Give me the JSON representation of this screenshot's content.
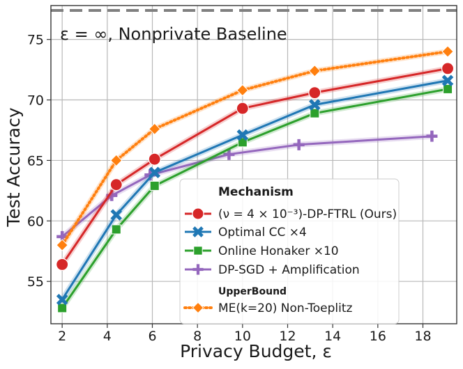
{
  "chart_data": {
    "type": "line",
    "xlabel": "Privacy Budget, ε",
    "ylabel": "Test Accuracy",
    "xlim": [
      1.5,
      19.5
    ],
    "ylim": [
      51.5,
      77.8
    ],
    "xticks": [
      2,
      4,
      6,
      8,
      10,
      12,
      14,
      16,
      18
    ],
    "yticks": [
      55,
      60,
      65,
      70,
      75
    ],
    "grid": true,
    "legend_position": "lower-right",
    "baseline": {
      "value": 77.4,
      "label": "ε = ∞, Nonprivate Baseline",
      "color": "#808080"
    },
    "legend": {
      "title": "Mechanism",
      "subtitle": "UpperBound"
    },
    "series": [
      {
        "name": "(ν = 4 × 10⁻³)-DP-FTRL (Ours)",
        "color": "#d62728",
        "marker": "circle",
        "style": "solid",
        "x": [
          2,
          4.4,
          6.1,
          10,
          13.2,
          19.1
        ],
        "y": [
          56.4,
          63.0,
          65.1,
          69.3,
          70.6,
          72.6
        ]
      },
      {
        "name": "Optimal CC ×4",
        "color": "#1f77b4",
        "marker": "x",
        "style": "solid",
        "x": [
          2,
          4.4,
          6.1,
          10,
          13.2,
          19.1
        ],
        "y": [
          53.5,
          60.5,
          64.0,
          67.1,
          69.6,
          71.6
        ]
      },
      {
        "name": "Online Honaker ×10",
        "color": "#2ca02c",
        "marker": "square",
        "style": "solid",
        "x": [
          2,
          4.4,
          6.1,
          10,
          13.2,
          19.1
        ],
        "y": [
          52.8,
          59.3,
          62.9,
          66.5,
          68.9,
          70.9
        ]
      },
      {
        "name": "DP-SGD + Amplification",
        "color": "#9467bd",
        "marker": "plus",
        "style": "solid",
        "x": [
          2,
          4.2,
          5.9,
          9.4,
          12.5,
          18.4
        ],
        "y": [
          58.7,
          62.1,
          63.8,
          65.5,
          66.3,
          67.0
        ]
      },
      {
        "name": "ME(k=20) Non-Toeplitz",
        "color": "#ff7f0e",
        "marker": "diamond",
        "style": "dotted",
        "x": [
          2,
          4.4,
          6.1,
          10,
          13.2,
          19.1
        ],
        "y": [
          58.0,
          65.0,
          67.6,
          70.8,
          72.4,
          74.0
        ]
      }
    ]
  }
}
